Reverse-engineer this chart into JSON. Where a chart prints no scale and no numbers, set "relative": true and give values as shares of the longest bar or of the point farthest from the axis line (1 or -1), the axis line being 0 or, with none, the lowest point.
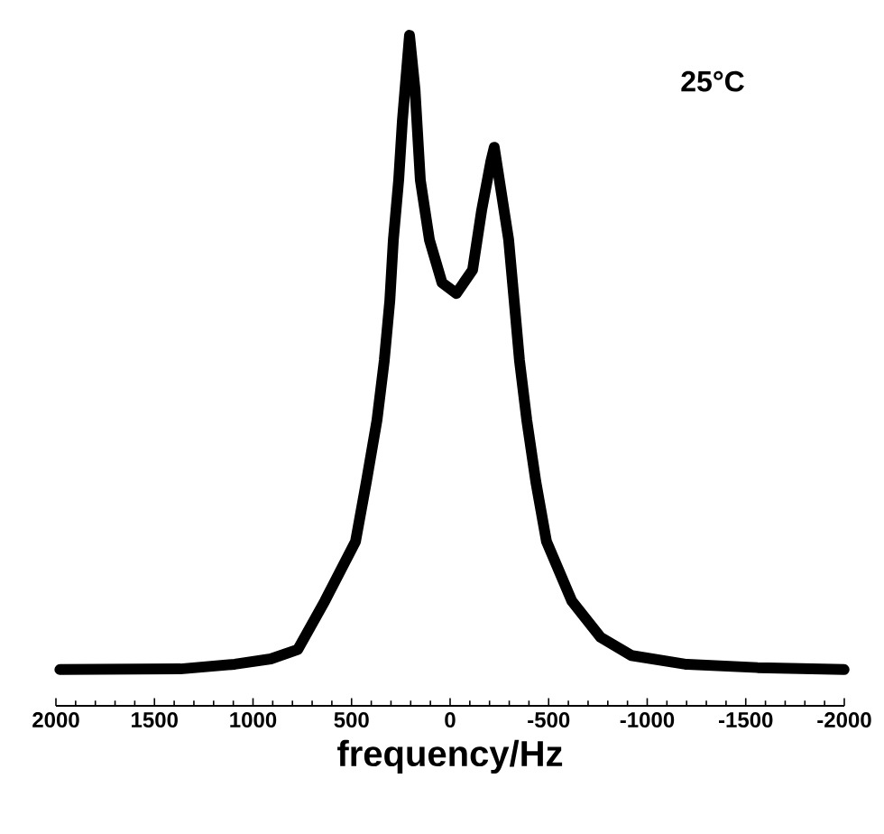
{
  "chart_data": {
    "type": "line",
    "xlabel": "frequency/Hz",
    "annotations": [
      "25°C"
    ],
    "relative": true,
    "tick_labels": "x",
    "xlim": [
      2000,
      -2000
    ],
    "xticks": [
      2000,
      1500,
      1000,
      500,
      0,
      -500,
      -1000,
      -1500,
      -2000
    ],
    "series": [
      {
        "color": "#000000",
        "x": [
          1980,
          1368,
          1093,
          910,
          773,
          636,
          480,
          425,
          371,
          334,
          306,
          288,
          261,
          242,
          206,
          178,
          151,
          105,
          41,
          -32,
          -114,
          -160,
          -206,
          -224,
          -297,
          -325,
          -352,
          -389,
          -435,
          -489,
          -618,
          -764,
          -920,
          -1194,
          -1560,
          -1999
        ],
        "values": [
          0.054,
          0.055,
          0.062,
          0.07,
          0.084,
          0.156,
          0.245,
          0.334,
          0.426,
          0.515,
          0.604,
          0.695,
          0.784,
          0.873,
          1.0,
          0.919,
          0.784,
          0.695,
          0.631,
          0.615,
          0.65,
          0.739,
          0.811,
          0.833,
          0.695,
          0.604,
          0.515,
          0.426,
          0.334,
          0.245,
          0.156,
          0.102,
          0.075,
          0.062,
          0.057,
          0.054
        ]
      }
    ]
  }
}
